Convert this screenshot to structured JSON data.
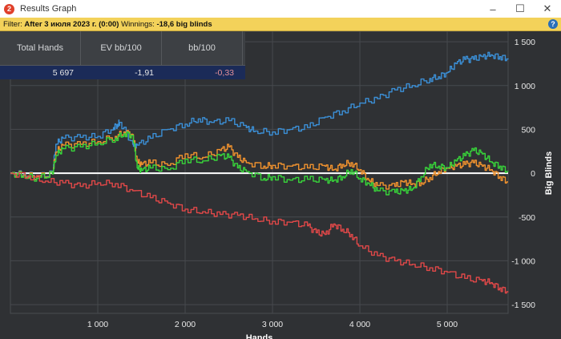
{
  "window": {
    "title": "Results Graph",
    "app_icon_glyph": "2"
  },
  "filter": {
    "label": "Filter:",
    "value": "After 3 июля 2023 г. (0:00)",
    "winnings_label": "Winnings:",
    "winnings_value": "-18,6 big blinds"
  },
  "stats": {
    "headers": [
      "Total Hands",
      "EV bb/100",
      "bb/100"
    ],
    "values": [
      "5 697",
      "-1,91",
      "-0,33"
    ]
  },
  "colors": {
    "background": "#2f3134",
    "grid": "#474a4e",
    "zero_line": "#ffffff",
    "blue": "#3b8fd6",
    "orange": "#f0922e",
    "green": "#38d43a",
    "red": "#e04848",
    "filter_bar": "#f3d25a"
  },
  "chart_data": {
    "type": "line",
    "xlabel": "Hands",
    "ylabel": "Big Blinds",
    "xlim": [
      0,
      5697
    ],
    "ylim": [
      -1600,
      1620
    ],
    "x_ticks": [
      1000,
      2000,
      3000,
      4000,
      5000
    ],
    "x_tick_labels": [
      "1 000",
      "2 000",
      "3 000",
      "4 000",
      "5 000"
    ],
    "y_ticks": [
      1500,
      1000,
      500,
      0,
      -500,
      -1000,
      -1500
    ],
    "y_tick_labels": [
      "1 500",
      "1 000",
      "500",
      "0",
      "-500",
      "-1 000",
      "-1 500"
    ],
    "grid": true,
    "series": [
      {
        "color_key": "blue",
        "x": [
          0,
          150,
          300,
          480,
          520,
          600,
          800,
          1000,
          1180,
          1230,
          1250,
          1400,
          1450,
          1600,
          1800,
          2000,
          2150,
          2300,
          2500,
          2700,
          2800,
          3000,
          3200,
          3400,
          3600,
          3800,
          4000,
          4200,
          4400,
          4600,
          4800,
          4900,
          5000,
          5100,
          5200,
          5300,
          5400,
          5500,
          5600,
          5697
        ],
        "y": [
          0,
          -10,
          -40,
          0,
          330,
          400,
          410,
          420,
          520,
          560,
          580,
          330,
          320,
          400,
          500,
          560,
          620,
          580,
          600,
          520,
          480,
          470,
          500,
          520,
          640,
          710,
          800,
          850,
          950,
          1000,
          1080,
          1100,
          1150,
          1250,
          1300,
          1300,
          1330,
          1350,
          1330,
          1310
        ]
      },
      {
        "color_key": "orange",
        "x": [
          0,
          150,
          300,
          480,
          520,
          600,
          800,
          1000,
          1200,
          1300,
          1400,
          1450,
          1500,
          1600,
          1800,
          2000,
          2200,
          2400,
          2500,
          2600,
          2700,
          2900,
          3000,
          3200,
          3400,
          3600,
          3700,
          3800,
          3900,
          4000,
          4100,
          4200,
          4400,
          4500,
          4600,
          4700,
          4800,
          4900,
          5000,
          5100,
          5200,
          5300,
          5400,
          5500,
          5600,
          5697
        ],
        "y": [
          0,
          -20,
          -40,
          -10,
          240,
          320,
          330,
          360,
          420,
          470,
          440,
          130,
          100,
          120,
          90,
          220,
          180,
          260,
          300,
          180,
          120,
          80,
          90,
          80,
          60,
          80,
          40,
          100,
          120,
          40,
          -80,
          -140,
          -150,
          -100,
          -120,
          -110,
          -50,
          20,
          60,
          80,
          100,
          120,
          80,
          40,
          -40,
          -100
        ]
      },
      {
        "color_key": "green",
        "x": [
          0,
          150,
          300,
          480,
          520,
          600,
          800,
          1000,
          1200,
          1300,
          1400,
          1450,
          1500,
          1600,
          1800,
          2000,
          2200,
          2400,
          2500,
          2600,
          2700,
          2900,
          3000,
          3200,
          3400,
          3600,
          3700,
          3800,
          3900,
          4000,
          4100,
          4200,
          4400,
          4500,
          4600,
          4700,
          4800,
          4900,
          5000,
          5100,
          5200,
          5300,
          5400,
          5500,
          5600,
          5697
        ],
        "y": [
          0,
          -30,
          -60,
          -10,
          200,
          280,
          300,
          340,
          400,
          450,
          430,
          60,
          30,
          60,
          40,
          160,
          140,
          200,
          180,
          60,
          20,
          -60,
          -40,
          -80,
          -70,
          -80,
          -80,
          -40,
          40,
          -60,
          -120,
          -200,
          -220,
          -200,
          -180,
          -40,
          100,
          80,
          60,
          140,
          200,
          260,
          220,
          130,
          80,
          20
        ]
      },
      {
        "color_key": "red",
        "x": [
          0,
          200,
          400,
          600,
          800,
          1000,
          1200,
          1400,
          1600,
          1800,
          2000,
          2200,
          2400,
          2600,
          2800,
          3000,
          3200,
          3400,
          3500,
          3600,
          3700,
          3800,
          3900,
          4000,
          4200,
          4400,
          4600,
          4800,
          5000,
          5200,
          5400,
          5500,
          5600,
          5697
        ],
        "y": [
          0,
          -30,
          -90,
          -110,
          -150,
          -110,
          -120,
          -200,
          -280,
          -340,
          -410,
          -440,
          -470,
          -480,
          -520,
          -550,
          -560,
          -600,
          -680,
          -700,
          -580,
          -640,
          -700,
          -830,
          -940,
          -1000,
          -1040,
          -1080,
          -1130,
          -1200,
          -1230,
          -1250,
          -1310,
          -1350
        ]
      }
    ]
  }
}
